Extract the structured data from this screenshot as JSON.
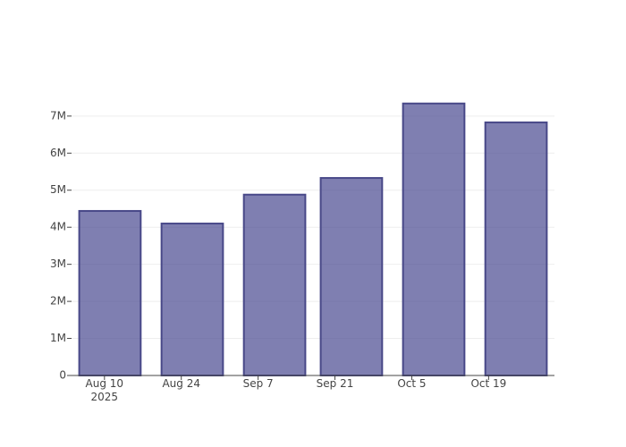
{
  "chart_data": {
    "type": "bar",
    "x": [
      "2025-08-11",
      "2025-08-26",
      "2025-09-10",
      "2025-09-24",
      "2025-10-09",
      "2025-10-24"
    ],
    "values": [
      4440000,
      4100000,
      4880000,
      5330000,
      7340000,
      6830000
    ],
    "color": "#484890",
    "outline_color": "#484888",
    "xlim": [
      "2025-08-04",
      "2025-10-31"
    ],
    "xticks": [
      {
        "value": "2025-08-10",
        "label": "Aug 10\n2025"
      },
      {
        "value": "2025-08-24",
        "label": "Aug 24"
      },
      {
        "value": "2025-09-07",
        "label": "Sep 7"
      },
      {
        "value": "2025-09-21",
        "label": "Sep 21"
      },
      {
        "value": "2025-10-05",
        "label": "Oct 5"
      },
      {
        "value": "2025-10-19",
        "label": "Oct 19"
      }
    ],
    "ylim": [
      0,
      7720000
    ],
    "yticks": [
      0,
      {
        "value": 1000000,
        "label": "1M"
      },
      {
        "value": 2000000,
        "label": "2M"
      },
      {
        "value": 3000000,
        "label": "3M"
      },
      {
        "value": 4000000,
        "label": "4M"
      },
      {
        "value": 5000000,
        "label": "5M"
      },
      {
        "value": 6000000,
        "label": "6M"
      },
      {
        "value": 7000000,
        "label": "7M"
      }
    ],
    "grid": true
  }
}
